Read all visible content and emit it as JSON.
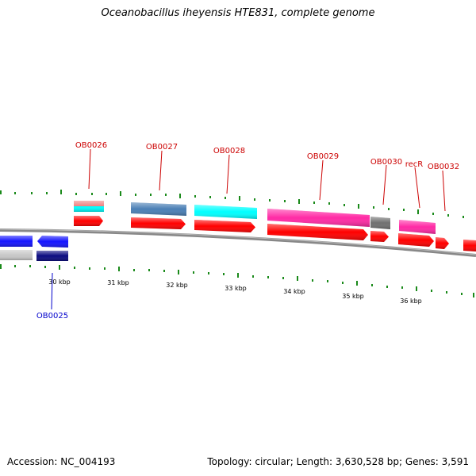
{
  "title": "Oceanobacillus iheyensis HTE831, complete genome",
  "footer": {
    "accession": "Accession: NC_004193",
    "summary": "Topology: circular; Length: 3,630,528 bp; Genes: 3,591"
  },
  "scale": [
    "30 kbp",
    "31 kbp",
    "32 kbp",
    "33 kbp",
    "34 kbp",
    "35 kbp",
    "36 kbp"
  ],
  "labels": [
    {
      "id": "OB0026",
      "text": "OB0026",
      "color": "#cc0000"
    },
    {
      "id": "OB0027",
      "text": "OB0027",
      "color": "#cc0000"
    },
    {
      "id": "OB0028",
      "text": "OB0028",
      "color": "#cc0000"
    },
    {
      "id": "OB0029",
      "text": "OB0029",
      "color": "#cc0000"
    },
    {
      "id": "OB0030",
      "text": "OB0030",
      "color": "#cc0000"
    },
    {
      "id": "recR",
      "text": "recR",
      "color": "#cc0000"
    },
    {
      "id": "OB0032",
      "text": "OB0032",
      "color": "#cc0000"
    },
    {
      "id": "OB0025",
      "text": "OB0025",
      "color": "#0000cc"
    }
  ],
  "colors": {
    "cds": "#ff0000",
    "backbone": "#888888",
    "ticks": "#1a8a1a",
    "blue": "#1414ff",
    "navy": "#0a0a80",
    "cyan": "#00ffff",
    "steel": "#4a7fb5",
    "pink": "#ff2aa5",
    "gray": "#707070",
    "lightgray": "#c8c8c8",
    "salmon": "#f08080"
  }
}
